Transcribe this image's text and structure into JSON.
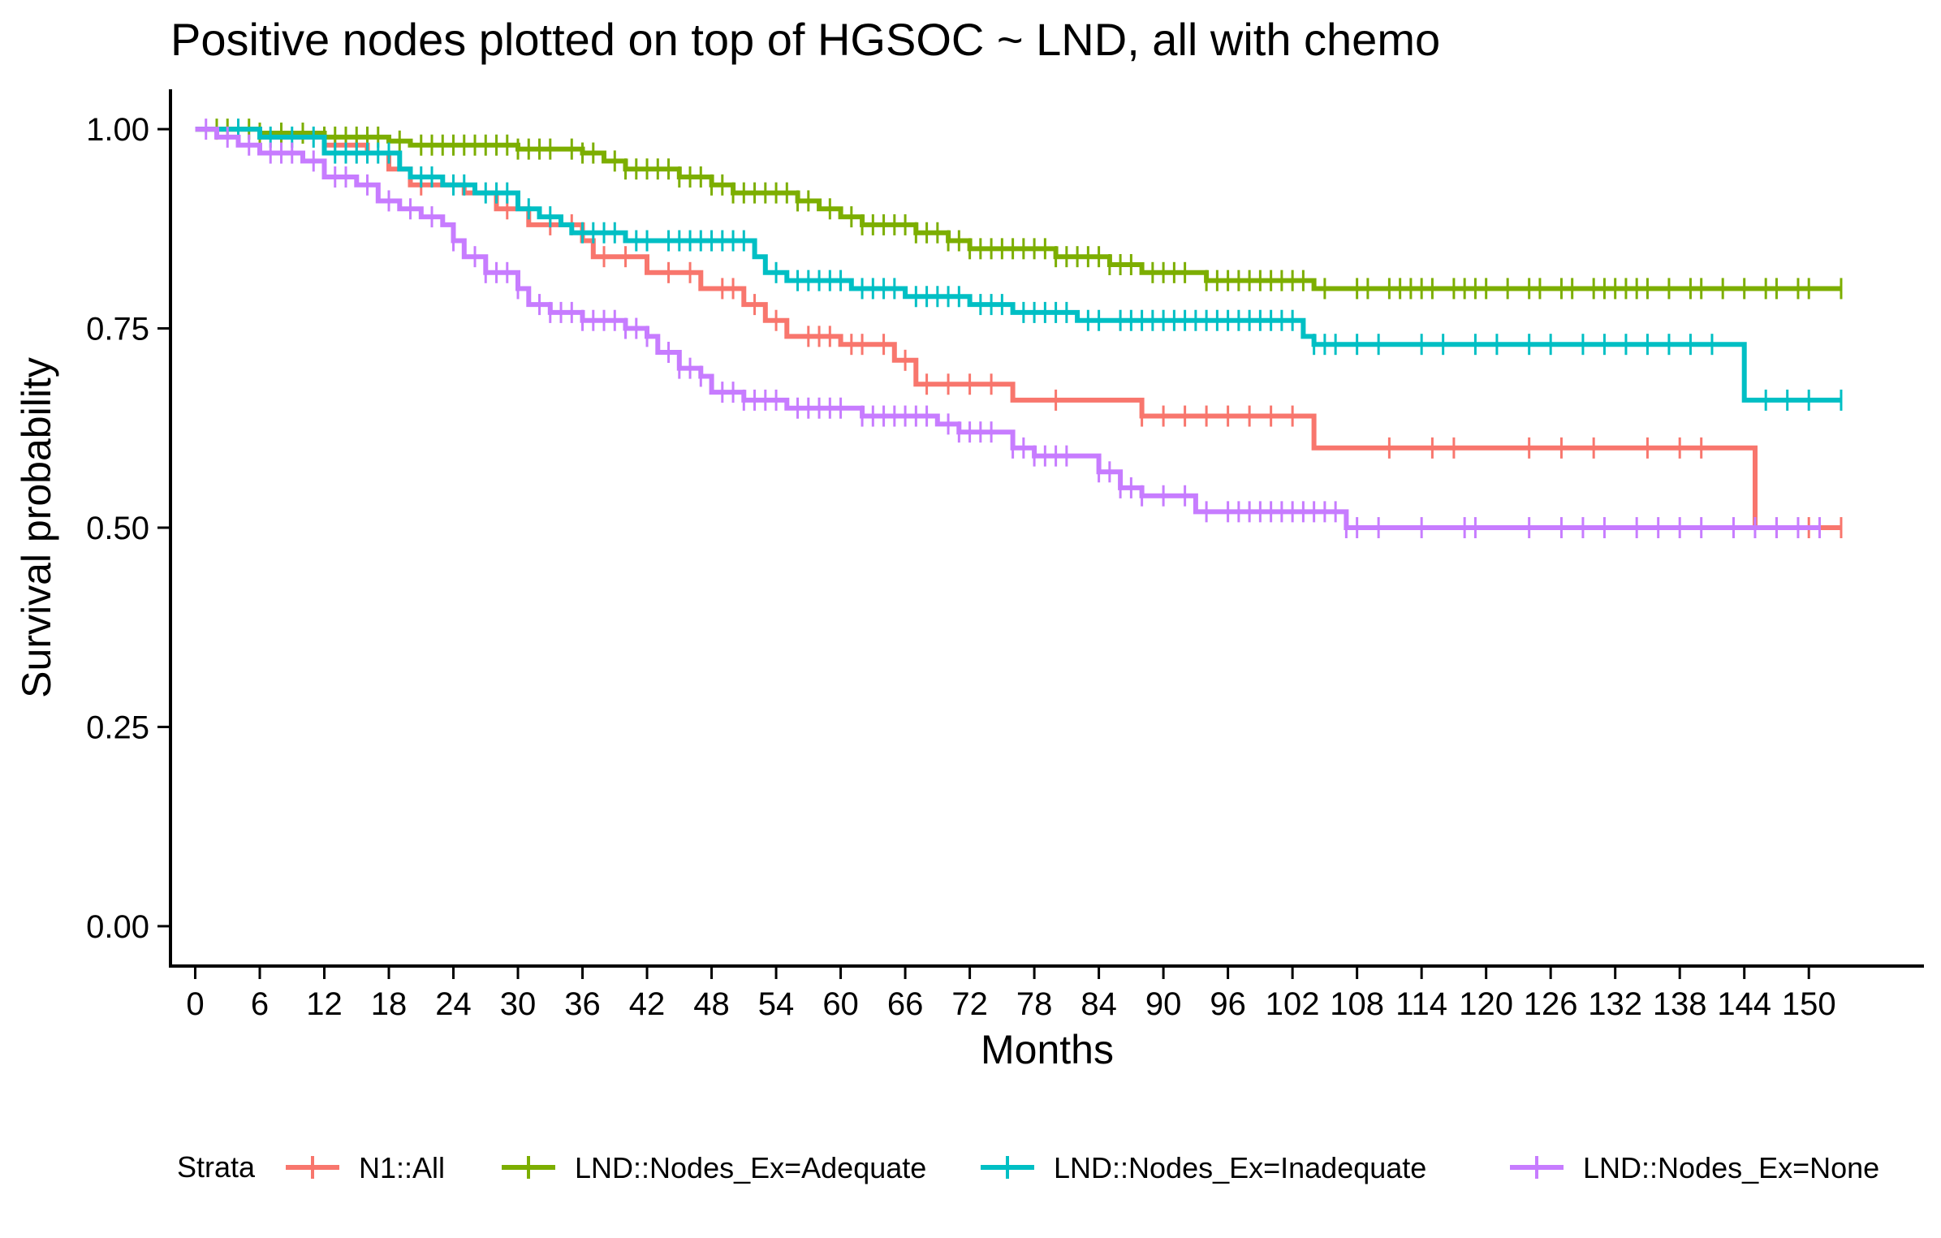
{
  "chart_data": {
    "type": "line",
    "title": "Positive nodes plotted on top of HGSOC ~ LND, all with chemo",
    "xlabel": "Months",
    "ylabel": "Survival probability",
    "xlim": [
      -2.3,
      160.7
    ],
    "ylim": [
      -0.05,
      1.05
    ],
    "x_ticks": [
      0,
      6,
      12,
      18,
      24,
      30,
      36,
      42,
      48,
      54,
      60,
      66,
      72,
      78,
      84,
      90,
      96,
      102,
      108,
      114,
      120,
      126,
      132,
      138,
      144,
      150
    ],
    "x_tick_labels": [
      "0",
      "6",
      "12",
      "18",
      "24",
      "30",
      "36",
      "42",
      "48",
      "54",
      "60",
      "66",
      "72",
      "78",
      "84",
      "90",
      "96",
      "102",
      "108",
      "114",
      "120",
      "126",
      "132",
      "138",
      "144",
      "150"
    ],
    "y_ticks": [
      0,
      0.25,
      0.5,
      0.75,
      1.0
    ],
    "y_tick_labels": [
      "0.00",
      "0.25",
      "0.50",
      "0.75",
      "1.00"
    ],
    "grid": false,
    "legend": {
      "title": "Strata",
      "placement": "bottom"
    },
    "series": [
      {
        "name": "N1::All",
        "color": "#F8766D",
        "steps": [
          [
            0,
            1.0
          ],
          [
            6,
            0.99
          ],
          [
            12,
            0.98
          ],
          [
            16,
            0.97
          ],
          [
            18,
            0.95
          ],
          [
            20,
            0.93
          ],
          [
            25,
            0.92
          ],
          [
            28,
            0.9
          ],
          [
            31,
            0.88
          ],
          [
            36,
            0.86
          ],
          [
            37,
            0.84
          ],
          [
            42,
            0.82
          ],
          [
            47,
            0.8
          ],
          [
            51,
            0.78
          ],
          [
            53,
            0.76
          ],
          [
            55,
            0.74
          ],
          [
            60,
            0.73
          ],
          [
            65,
            0.71
          ],
          [
            67,
            0.68
          ],
          [
            76,
            0.66
          ],
          [
            88,
            0.64
          ],
          [
            104,
            0.6
          ],
          [
            145,
            0.5
          ],
          [
            153,
            0.5
          ]
        ],
        "censors": [
          13,
          15,
          21,
          29,
          33,
          35,
          38,
          40,
          44,
          46,
          49,
          50,
          52,
          54,
          57,
          58,
          59,
          61,
          62,
          64,
          66,
          68,
          70,
          72,
          74,
          80,
          88,
          90,
          92,
          94,
          96,
          98,
          100,
          102,
          111,
          115,
          117,
          124,
          127,
          130,
          135,
          138,
          140,
          147,
          150,
          153
        ]
      },
      {
        "name": "LND::Nodes_Ex=Adequate",
        "color": "#7CAE00",
        "steps": [
          [
            0,
            1.0
          ],
          [
            6,
            0.995
          ],
          [
            12,
            0.99
          ],
          [
            18,
            0.985
          ],
          [
            20,
            0.98
          ],
          [
            30,
            0.975
          ],
          [
            36,
            0.97
          ],
          [
            38,
            0.96
          ],
          [
            40,
            0.95
          ],
          [
            45,
            0.94
          ],
          [
            48,
            0.93
          ],
          [
            50,
            0.92
          ],
          [
            56,
            0.91
          ],
          [
            58,
            0.9
          ],
          [
            60,
            0.89
          ],
          [
            62,
            0.88
          ],
          [
            67,
            0.87
          ],
          [
            70,
            0.86
          ],
          [
            72,
            0.85
          ],
          [
            80,
            0.84
          ],
          [
            85,
            0.83
          ],
          [
            88,
            0.82
          ],
          [
            94,
            0.81
          ],
          [
            104,
            0.8
          ],
          [
            153,
            0.8
          ]
        ],
        "censors": [
          2,
          3,
          5,
          6,
          8,
          10,
          12,
          13,
          14,
          15,
          16,
          17,
          19,
          21,
          22,
          23,
          24,
          25,
          26,
          27,
          28,
          29,
          30,
          31,
          32,
          33,
          35,
          36,
          37,
          39,
          40,
          41,
          42,
          43,
          44,
          45,
          46,
          47,
          48,
          49,
          50,
          51,
          52,
          53,
          54,
          55,
          56,
          57,
          59,
          61,
          62,
          63,
          64,
          65,
          66,
          67,
          68,
          69,
          70,
          71,
          72,
          73,
          74,
          75,
          76,
          77,
          78,
          79,
          80,
          81,
          82,
          83,
          84,
          85,
          86,
          87,
          89,
          90,
          91,
          92,
          94,
          95,
          96,
          97,
          98,
          99,
          100,
          101,
          102,
          103,
          105,
          108,
          109,
          111,
          112,
          113,
          114,
          115,
          117,
          118,
          119,
          120,
          122,
          124,
          125,
          127,
          128,
          130,
          131,
          132,
          133,
          134,
          135,
          137,
          139,
          140,
          142,
          144,
          146,
          147,
          149,
          150,
          153
        ]
      },
      {
        "name": "LND::Nodes_Ex=Inadequate",
        "color": "#00BFC4",
        "steps": [
          [
            0,
            1.0
          ],
          [
            6,
            0.99
          ],
          [
            12,
            0.97
          ],
          [
            19,
            0.95
          ],
          [
            20,
            0.94
          ],
          [
            23,
            0.93
          ],
          [
            26,
            0.92
          ],
          [
            30,
            0.9
          ],
          [
            32,
            0.89
          ],
          [
            34,
            0.88
          ],
          [
            35,
            0.87
          ],
          [
            40,
            0.86
          ],
          [
            52,
            0.84
          ],
          [
            53,
            0.82
          ],
          [
            55,
            0.81
          ],
          [
            61,
            0.8
          ],
          [
            66,
            0.79
          ],
          [
            72,
            0.78
          ],
          [
            76,
            0.77
          ],
          [
            82,
            0.76
          ],
          [
            103,
            0.74
          ],
          [
            104,
            0.73
          ],
          [
            143,
            0.73
          ],
          [
            144,
            0.66
          ],
          [
            153,
            0.66
          ]
        ],
        "censors": [
          4,
          7,
          9,
          11,
          13,
          14,
          15,
          16,
          17,
          18,
          21,
          22,
          24,
          25,
          27,
          28,
          29,
          31,
          33,
          36,
          37,
          38,
          39,
          41,
          42,
          44,
          45,
          46,
          47,
          48,
          49,
          50,
          51,
          54,
          56,
          57,
          58,
          59,
          60,
          62,
          63,
          64,
          65,
          67,
          68,
          69,
          70,
          71,
          73,
          74,
          75,
          77,
          78,
          79,
          80,
          81,
          83,
          84,
          86,
          87,
          88,
          89,
          90,
          91,
          92,
          93,
          94,
          95,
          96,
          97,
          98,
          99,
          100,
          101,
          102,
          104,
          105,
          106,
          108,
          110,
          114,
          116,
          119,
          121,
          124,
          126,
          129,
          131,
          133,
          135,
          137,
          139,
          141,
          146,
          148,
          150,
          153
        ]
      },
      {
        "name": "LND::Nodes_Ex=None",
        "color": "#C77CFF",
        "steps": [
          [
            0,
            1.0
          ],
          [
            2,
            0.99
          ],
          [
            4,
            0.98
          ],
          [
            6,
            0.97
          ],
          [
            10,
            0.96
          ],
          [
            12,
            0.94
          ],
          [
            15,
            0.93
          ],
          [
            17,
            0.91
          ],
          [
            19,
            0.9
          ],
          [
            21,
            0.89
          ],
          [
            23,
            0.88
          ],
          [
            24,
            0.86
          ],
          [
            25,
            0.84
          ],
          [
            27,
            0.82
          ],
          [
            30,
            0.8
          ],
          [
            31,
            0.78
          ],
          [
            33,
            0.77
          ],
          [
            36,
            0.76
          ],
          [
            40,
            0.75
          ],
          [
            42,
            0.74
          ],
          [
            43,
            0.72
          ],
          [
            45,
            0.7
          ],
          [
            47,
            0.69
          ],
          [
            48,
            0.67
          ],
          [
            51,
            0.66
          ],
          [
            55,
            0.65
          ],
          [
            62,
            0.64
          ],
          [
            69,
            0.63
          ],
          [
            71,
            0.62
          ],
          [
            76,
            0.6
          ],
          [
            78,
            0.59
          ],
          [
            84,
            0.57
          ],
          [
            86,
            0.55
          ],
          [
            88,
            0.54
          ],
          [
            93,
            0.52
          ],
          [
            107,
            0.5
          ],
          [
            151,
            0.5
          ]
        ],
        "censors": [
          1,
          3,
          5,
          7,
          8,
          9,
          11,
          13,
          14,
          16,
          18,
          20,
          22,
          24,
          26,
          27,
          28,
          29,
          30,
          32,
          33,
          34,
          35,
          36,
          37,
          38,
          39,
          40,
          41,
          42,
          44,
          45,
          46,
          47,
          49,
          50,
          51,
          52,
          53,
          54,
          56,
          57,
          58,
          59,
          60,
          62,
          63,
          64,
          65,
          66,
          67,
          68,
          70,
          71,
          72,
          73,
          74,
          76,
          77,
          78,
          79,
          80,
          81,
          84,
          85,
          86,
          87,
          88,
          90,
          92,
          94,
          96,
          97,
          98,
          99,
          100,
          101,
          102,
          103,
          104,
          105,
          106,
          107,
          108,
          110,
          114,
          118,
          119,
          124,
          127,
          129,
          131,
          134,
          136,
          138,
          140,
          143,
          145,
          147,
          149,
          151
        ]
      }
    ]
  }
}
